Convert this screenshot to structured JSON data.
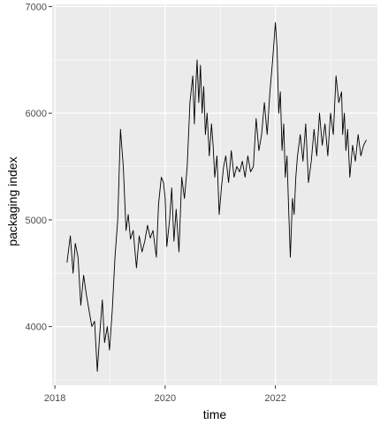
{
  "chart_data": {
    "type": "line",
    "xlabel": "time",
    "ylabel": "packaging index",
    "x_ticks": [
      {
        "value": 2018,
        "label": "2018"
      },
      {
        "value": 2020,
        "label": "2020"
      },
      {
        "value": 2022,
        "label": "2022"
      }
    ],
    "y_ticks": [
      {
        "value": 4000,
        "label": "4000"
      },
      {
        "value": 5000,
        "label": "5000"
      },
      {
        "value": 6000,
        "label": "6000"
      },
      {
        "value": 7000,
        "label": "7000"
      }
    ],
    "xlim": [
      2017.95,
      2023.85
    ],
    "ylim": [
      3450,
      7020
    ],
    "grid": true,
    "colors": {
      "panel": "#ebebeb",
      "grid": "#ffffff",
      "line": "#000000",
      "axis_text": "#4d4d4d",
      "title_text": "#000000"
    },
    "series": [
      {
        "x": [
          2018.22,
          2018.28,
          2018.33,
          2018.37,
          2018.42,
          2018.47,
          2018.52,
          2018.57,
          2018.62,
          2018.67,
          2018.72,
          2018.77,
          2018.81,
          2018.86,
          2018.9,
          2018.95,
          2018.99,
          2019.04,
          2019.09,
          2019.14,
          2019.19,
          2019.24,
          2019.29,
          2019.33,
          2019.37,
          2019.42,
          2019.48,
          2019.53,
          2019.58,
          2019.63,
          2019.68,
          2019.73,
          2019.78,
          2019.84,
          2019.88,
          2019.93,
          2019.97,
          2020.0,
          2020.03,
          2020.08,
          2020.12,
          2020.16,
          2020.2,
          2020.25,
          2020.3,
          2020.35,
          2020.4,
          2020.45,
          2020.5,
          2020.53,
          2020.55,
          2020.58,
          2020.61,
          2020.64,
          2020.67,
          2020.7,
          2020.73,
          2020.76,
          2020.8,
          2020.84,
          2020.87,
          2020.9,
          2020.94,
          2020.98,
          2021.02,
          2021.06,
          2021.1,
          2021.15,
          2021.2,
          2021.25,
          2021.3,
          2021.35,
          2021.4,
          2021.45,
          2021.5,
          2021.55,
          2021.6,
          2021.65,
          2021.7,
          2021.75,
          2021.8,
          2021.85,
          2021.9,
          2021.95,
          2022.0,
          2022.03,
          2022.06,
          2022.09,
          2022.12,
          2022.15,
          2022.18,
          2022.21,
          2022.24,
          2022.27,
          2022.31,
          2022.34,
          2022.37,
          2022.4,
          2022.45,
          2022.5,
          2022.55,
          2022.6,
          2022.65,
          2022.7,
          2022.75,
          2022.8,
          2022.85,
          2022.9,
          2022.95,
          2023.0,
          2023.05,
          2023.1,
          2023.15,
          2023.2,
          2023.22,
          2023.25,
          2023.28,
          2023.31,
          2023.35,
          2023.4,
          2023.45,
          2023.5,
          2023.55,
          2023.6,
          2023.65
        ],
        "values": [
          4600,
          4850,
          4500,
          4780,
          4650,
          4200,
          4480,
          4300,
          4150,
          4000,
          4050,
          3580,
          3900,
          4250,
          3850,
          4000,
          3780,
          4150,
          4650,
          5000,
          5850,
          5500,
          4900,
          5050,
          4820,
          4900,
          4550,
          4850,
          4700,
          4800,
          4950,
          4830,
          4900,
          4650,
          5150,
          5400,
          5350,
          5200,
          4750,
          5000,
          5300,
          4800,
          5100,
          4700,
          5400,
          5200,
          5500,
          6100,
          6350,
          5900,
          6200,
          6500,
          6100,
          6450,
          6000,
          6250,
          5800,
          6000,
          5600,
          5900,
          5700,
          5400,
          5600,
          5050,
          5300,
          5500,
          5600,
          5350,
          5650,
          5400,
          5500,
          5450,
          5550,
          5400,
          5600,
          5450,
          5500,
          5950,
          5650,
          5800,
          6100,
          5800,
          6200,
          6500,
          6850,
          6600,
          6000,
          6200,
          5650,
          5900,
          5400,
          5600,
          5100,
          4650,
          5200,
          5050,
          5400,
          5600,
          5800,
          5550,
          5900,
          5350,
          5550,
          5850,
          5600,
          6000,
          5700,
          5900,
          5600,
          6000,
          5800,
          6350,
          6100,
          6200,
          5800,
          6000,
          5650,
          5850,
          5400,
          5700,
          5550,
          5800,
          5600,
          5700,
          5750
        ]
      }
    ]
  }
}
